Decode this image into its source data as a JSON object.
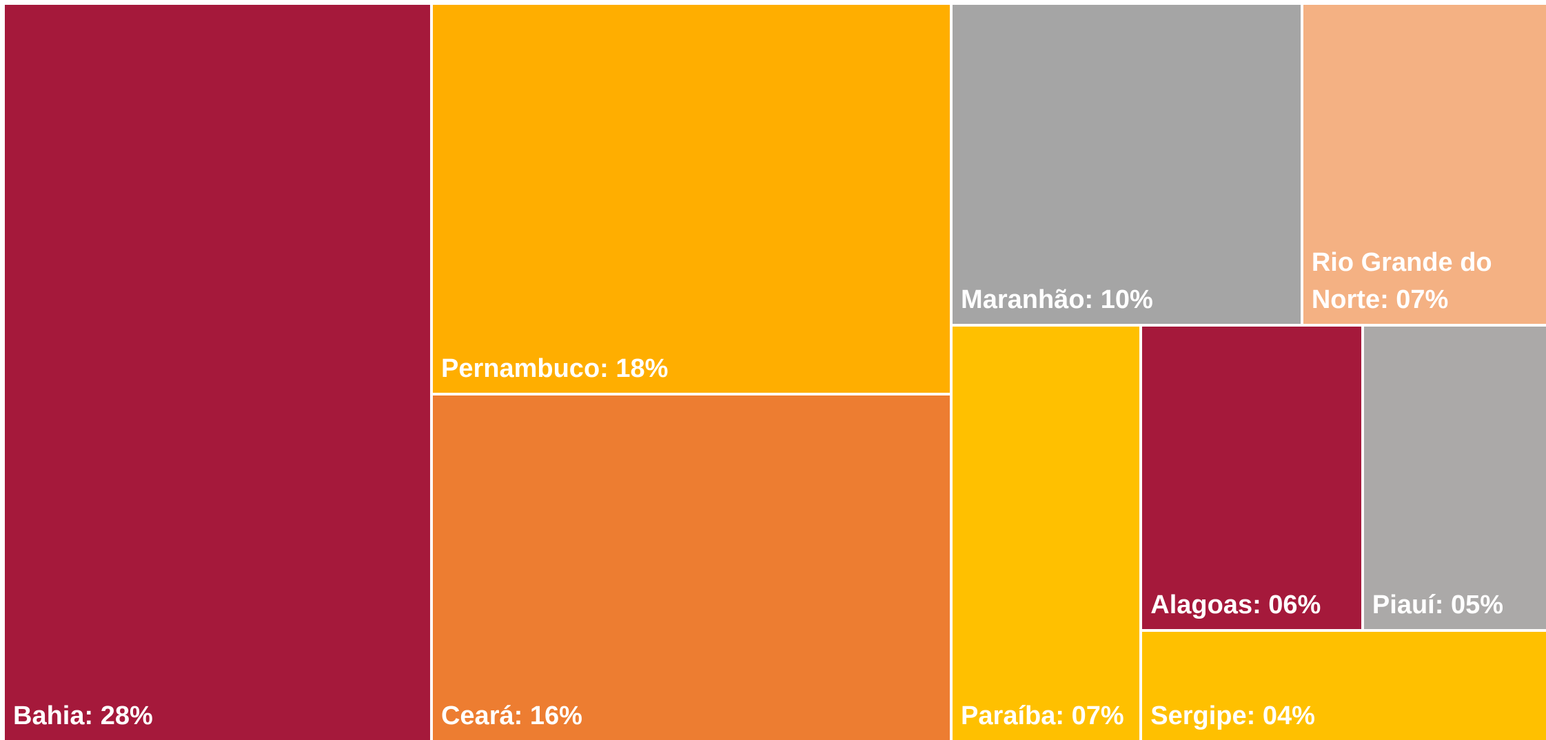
{
  "chart_data": {
    "type": "treemap",
    "values": [
      28,
      18,
      16,
      10,
      7,
      7,
      6,
      5,
      4
    ],
    "value_labels": [
      "Bahia: 28%",
      "Pernambuco: 18%",
      "Ceará: 16%",
      "Maranhão: 10%",
      "Rio Grande do Norte: 07%",
      "Paraíba: 07%",
      "Alagoas: 06%",
      "Piauí: 05%",
      "Sergipe: 04%"
    ],
    "colors": [
      "#a5193b",
      "#ffae00",
      "#ed7d31",
      "#a5a5a5",
      "#f4b183",
      "#ffc000",
      "#a5193b",
      "#aba9a8",
      "#ffc000"
    ]
  }
}
